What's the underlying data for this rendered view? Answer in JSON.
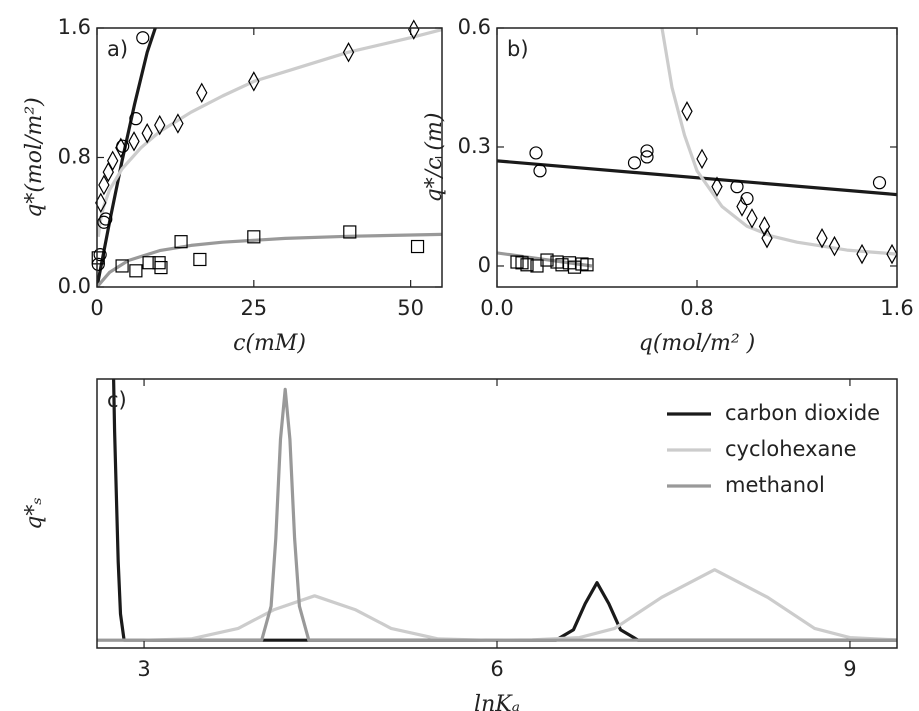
{
  "chart_data": [
    {
      "type": "scatter",
      "label": "a)",
      "xlabel": "c(mM)",
      "ylabel": "q*(mol/m²)",
      "xlim": [
        0,
        55
      ],
      "ylim": [
        0,
        1.6
      ],
      "xticks": [
        0,
        25,
        50
      ],
      "yticks": [
        {
          "value": 0,
          "label": "0.0"
        },
        0.8,
        1.6
      ],
      "series": [
        {
          "color": "#1a1a1a",
          "x": [
            0,
            2,
            4,
            6,
            8,
            9.3
          ],
          "values": [
            0,
            0.4,
            0.78,
            1.13,
            1.45,
            1.6
          ]
        },
        {
          "color": "#cccccc",
          "x": [
            0.2,
            0.5,
            1,
            2,
            4,
            7,
            10,
            15,
            20,
            25,
            30,
            40,
            50,
            55
          ],
          "values": [
            0.31,
            0.4,
            0.49,
            0.6,
            0.73,
            0.86,
            0.96,
            1.08,
            1.18,
            1.27,
            1.33,
            1.45,
            1.54,
            1.59
          ]
        },
        {
          "color": "#999999",
          "x": [
            0,
            2,
            5,
            10,
            15,
            20,
            30,
            40,
            55
          ],
          "values": [
            0,
            0.09,
            0.164,
            0.225,
            0.257,
            0.277,
            0.3,
            0.313,
            0.325
          ]
        },
        {
          "marker": "circle",
          "color": "#000000",
          "x": [
            0.2,
            0.5,
            1.1,
            1.4,
            4.1,
            6.2,
            7.3
          ],
          "values": [
            0.14,
            0.2,
            0.4,
            0.42,
            0.87,
            1.04,
            1.54
          ]
        },
        {
          "marker": "diamond",
          "color": "#000000",
          "x": [
            0.6,
            1.1,
            1.8,
            2.5,
            3.8,
            5.9,
            8,
            10,
            12.9,
            16.7,
            25,
            40.1,
            50.5
          ],
          "values": [
            0.52,
            0.63,
            0.71,
            0.78,
            0.86,
            0.9,
            0.95,
            1.0,
            1.01,
            1.2,
            1.27,
            1.45,
            1.59
          ]
        },
        {
          "marker": "square",
          "color": "#000000",
          "x": [
            0.2,
            4,
            6.2,
            8.3,
            9.9,
            10.2,
            13.4,
            16.4,
            25,
            40.3,
            51.1
          ],
          "values": [
            0.18,
            0.13,
            0.1,
            0.15,
            0.15,
            0.12,
            0.28,
            0.17,
            0.31,
            0.34,
            0.25
          ]
        }
      ]
    },
    {
      "type": "scatter",
      "label": "b)",
      "xlabel": "q(mol/m² )",
      "ylabel": "q*/c (m)",
      "xlim": [
        0,
        1.6
      ],
      "ylim": [
        -0.053,
        0.6
      ],
      "xticks": [
        {
          "value": 0,
          "label": "0.0"
        },
        0.8,
        1.6
      ],
      "yticks": [
        0,
        0.3,
        0.6
      ],
      "series": [
        {
          "color": "#1a1a1a",
          "x": [
            0,
            1.6
          ],
          "values": [
            0.265,
            0.18
          ]
        },
        {
          "color": "#cccccc",
          "x": [
            0.66,
            0.7,
            0.75,
            0.8,
            0.9,
            1.0,
            1.1,
            1.2,
            1.3,
            1.4,
            1.5,
            1.6
          ],
          "values": [
            0.6,
            0.45,
            0.33,
            0.24,
            0.15,
            0.1,
            0.075,
            0.06,
            0.05,
            0.04,
            0.035,
            0.03
          ]
        },
        {
          "color": "#999999",
          "x": [
            0,
            0.38
          ],
          "values": [
            0.033,
            0
          ]
        },
        {
          "marker": "circle",
          "color": "#000000",
          "x": [
            0.156,
            0.172,
            0.55,
            0.6,
            0.6,
            0.96,
            1.0,
            1.53
          ],
          "values": [
            0.285,
            0.24,
            0.26,
            0.29,
            0.275,
            0.2,
            0.17,
            0.21
          ]
        },
        {
          "marker": "diamond",
          "color": "#000000",
          "x": [
            0.76,
            0.82,
            0.88,
            0.98,
            1.02,
            1.07,
            1.08,
            1.3,
            1.35,
            1.46,
            1.58
          ],
          "values": [
            0.39,
            0.27,
            0.2,
            0.15,
            0.12,
            0.1,
            0.07,
            0.07,
            0.05,
            0.03,
            0.03
          ]
        },
        {
          "marker": "square",
          "color": "#000000",
          "x": [
            0.08,
            0.1,
            0.12,
            0.16,
            0.2,
            0.24,
            0.26,
            0.29,
            0.31,
            0.34,
            0.36
          ],
          "values": [
            0.01,
            0.008,
            0.003,
            0,
            0.015,
            0.01,
            0.003,
            0.008,
            -0.003,
            0.005,
            0.003
          ]
        }
      ]
    },
    {
      "type": "line",
      "label": "c)",
      "xlabel": "lnKₐ",
      "ylabel": "q*ₛ",
      "xlim": [
        2.6,
        9.4
      ],
      "ylim": [
        -0.03,
        1
      ],
      "xticks": [
        3,
        6,
        9
      ],
      "legend": "upper right",
      "series": [
        {
          "name": "carbon dioxide",
          "color": "#1a1a1a",
          "x": [
            2.72,
            2.75,
            2.78,
            2.8,
            2.83,
            6.5,
            6.65,
            6.75,
            6.85,
            6.95,
            7.05,
            7.2,
            9.4
          ],
          "values": [
            1.5,
            0.8,
            0.3,
            0.1,
            0,
            0,
            0.04,
            0.14,
            0.22,
            0.14,
            0.04,
            0,
            0
          ]
        },
        {
          "name": "cyclohexane",
          "color": "#cccccc",
          "x": [
            2.6,
            3.0,
            3.4,
            3.8,
            4.1,
            4.45,
            4.8,
            5.1,
            5.5,
            5.9,
            6.3,
            6.7,
            7.0,
            7.4,
            7.85,
            8.3,
            8.7,
            9.0,
            9.4
          ],
          "values": [
            0,
            0,
            0.005,
            0.045,
            0.116,
            0.17,
            0.116,
            0.045,
            0.005,
            0,
            0.001,
            0.01,
            0.045,
            0.164,
            0.27,
            0.164,
            0.045,
            0.01,
            0.001
          ]
        },
        {
          "name": "methanol",
          "color": "#999999",
          "x": [
            2.6,
            4.0,
            4.08,
            4.12,
            4.16,
            4.2,
            4.24,
            4.28,
            4.32,
            4.4,
            9.4
          ],
          "values": [
            0,
            0,
            0.13,
            0.39,
            0.77,
            0.96,
            0.77,
            0.39,
            0.13,
            0,
            0
          ]
        }
      ]
    }
  ]
}
